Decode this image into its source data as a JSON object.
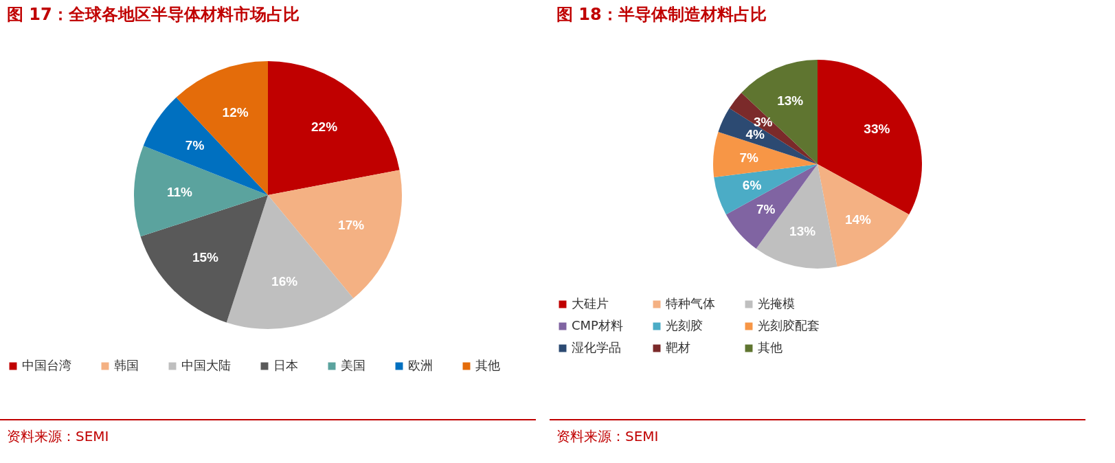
{
  "chart_data": [
    {
      "type": "pie",
      "title": "图 17：全球各地区半导体材料市场占比",
      "categories": [
        "中国台湾",
        "韩国",
        "中国大陆",
        "日本",
        "美国",
        "欧洲",
        "其他"
      ],
      "values": [
        22,
        17,
        16,
        15,
        11,
        7,
        12
      ],
      "colors": [
        "#c00000",
        "#f4b183",
        "#bfbfbf",
        "#595959",
        "#5ba39e",
        "#0070c0",
        "#e46c0a"
      ],
      "value_labels": [
        "22%",
        "17%",
        "16%",
        "15%",
        "11%",
        "7%",
        "12%"
      ],
      "legend": "bottom",
      "annotations": [
        "资料来源：SEMI"
      ]
    },
    {
      "type": "pie",
      "title": "图 18：半导体制造材料占比",
      "categories": [
        "大硅片",
        "特种气体",
        "光掩模",
        "CMP材料",
        "光刻胶",
        "光刻胶配套",
        "湿化学品",
        "靶材",
        "其他"
      ],
      "values": [
        33,
        14,
        13,
        7,
        6,
        7,
        4,
        3,
        13
      ],
      "colors": [
        "#c00000",
        "#f4b183",
        "#bfbfbf",
        "#8064a2",
        "#4bacc6",
        "#f79646",
        "#2c4a72",
        "#7b2a2a",
        "#5f7530"
      ],
      "value_labels": [
        "33%",
        "14%",
        "13%",
        "7%",
        "6%",
        "7%",
        "4%",
        "3%",
        "13%"
      ],
      "legend": "bottom",
      "annotations": [
        "资料来源：SEMI"
      ]
    }
  ]
}
